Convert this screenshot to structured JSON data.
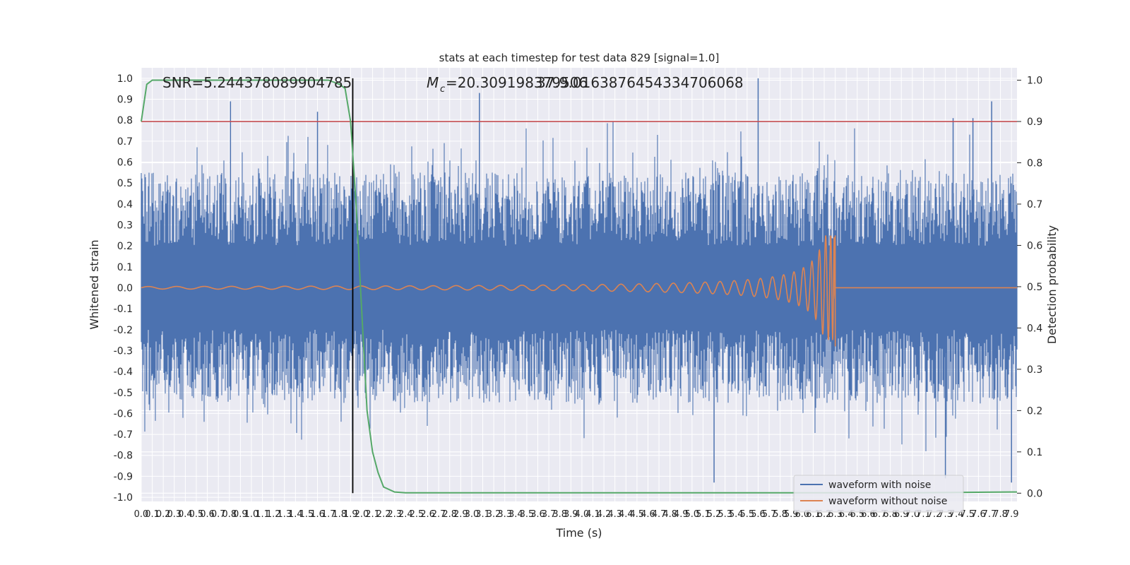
{
  "chart_data": {
    "type": "line",
    "title": "stats at each timestep for test data 829 [signal=1.0]",
    "xlabel": "Time (s)",
    "ylabel": "Whitened strain",
    "ylabel_right": "Detection probability",
    "xlim": [
      0,
      7.95
    ],
    "ylim": [
      -1.02,
      1.05
    ],
    "ylim_right": [
      -0.02,
      1.03
    ],
    "x_ticks": [
      0.0,
      0.1,
      0.2,
      0.3,
      0.4,
      0.5,
      0.6,
      0.7,
      0.8,
      0.9,
      1.0,
      1.1,
      1.2,
      1.3,
      1.4,
      1.5,
      1.6,
      1.7,
      1.8,
      1.9,
      2.0,
      2.1,
      2.2,
      2.3,
      2.4,
      2.5,
      2.6,
      2.7,
      2.8,
      2.9,
      3.0,
      3.1,
      3.2,
      3.3,
      3.4,
      3.5,
      3.6,
      3.7,
      3.8,
      3.9,
      4.0,
      4.1,
      4.2,
      4.3,
      4.4,
      4.5,
      4.6,
      4.7,
      4.8,
      4.9,
      5.0,
      5.1,
      5.2,
      5.3,
      5.4,
      5.5,
      5.6,
      5.7,
      5.8,
      5.9,
      6.0,
      6.1,
      6.2,
      6.3,
      6.4,
      6.5,
      6.6,
      6.7,
      6.8,
      6.9,
      7.0,
      7.1,
      7.2,
      7.3,
      7.4,
      7.5,
      7.6,
      7.7,
      7.8,
      7.9
    ],
    "y_ticks": [
      -1.0,
      -0.9,
      -0.8,
      -0.7,
      -0.6,
      -0.5,
      -0.4,
      -0.3,
      -0.2,
      -0.1,
      0.0,
      0.1,
      0.2,
      0.3,
      0.4,
      0.5,
      0.6,
      0.7,
      0.8,
      0.9,
      1.0
    ],
    "y_ticks_right": [
      0.0,
      0.1,
      0.2,
      0.3,
      0.4,
      0.5,
      0.6,
      0.7,
      0.8,
      0.9,
      1.0
    ],
    "grid": true,
    "legend_position": "lower-right",
    "annotations": {
      "snr": "SNR=5.244378089904785",
      "mc": "=20.309198379506",
      "mc_symbol": "M",
      "mc_subscript": "c",
      "overlap": "37.9.0163876454334706068"
    },
    "threshold_right": 0.9,
    "detection_time": 1.92,
    "chirp_end_time": 6.3,
    "series": [
      {
        "name": "waveform with noise",
        "color": "#4c72b0",
        "axis": "left",
        "kind": "noise",
        "spike_times": [
          0.81,
          1.6,
          3.07,
          5.6,
          7.37,
          7.55,
          7.72
        ],
        "spike_values": [
          0.89,
          0.84,
          0.93,
          1.0,
          0.81,
          0.81,
          0.89
        ],
        "min_spikes_times": [
          5.2,
          7.3,
          7.9
        ],
        "min_spikes_values": [
          -0.93,
          -0.91,
          -0.93
        ]
      },
      {
        "name": "waveform without noise",
        "color": "#dd8452",
        "axis": "left",
        "kind": "chirp",
        "peak_amplitude": 0.25,
        "min_amplitude": -0.28
      },
      {
        "name": "",
        "color": "#55a868",
        "axis": "right",
        "kind": "probability",
        "x": [
          0.0,
          0.05,
          0.1,
          0.2,
          0.4,
          0.8,
          1.2,
          1.6,
          1.7,
          1.75,
          1.8,
          1.85,
          1.9,
          1.95,
          2.0,
          2.05,
          2.1,
          2.15,
          2.2,
          2.3,
          2.4,
          3.0,
          4.0,
          5.0,
          6.0,
          7.0,
          7.5,
          7.9,
          7.95
        ],
        "values": [
          0.9,
          0.99,
          1.0,
          1.0,
          1.0,
          1.0,
          1.0,
          1.0,
          1.0,
          0.995,
          0.99,
          0.98,
          0.9,
          0.7,
          0.45,
          0.2,
          0.1,
          0.05,
          0.015,
          0.003,
          0.001,
          0.001,
          0.001,
          0.001,
          0.001,
          0.001,
          0.002,
          0.003,
          0.003
        ]
      }
    ],
    "colors": {
      "background": "#eaeaf2",
      "grid": "#ffffff",
      "threshold": "#c44e52",
      "detection_line": "#000000"
    }
  }
}
